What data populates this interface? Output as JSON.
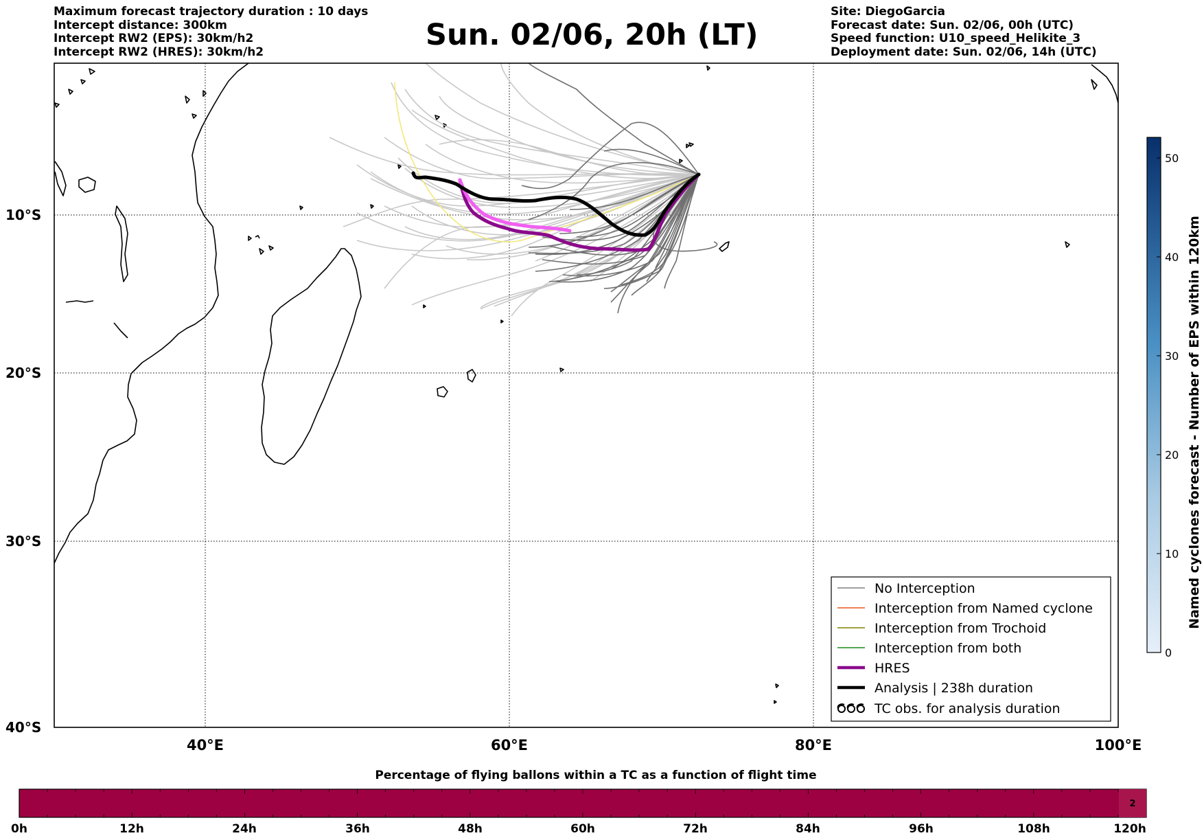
{
  "header_left": [
    "Maximum forecast trajectory duration : 10 days",
    "Intercept distance: 300km",
    "Intercept RW2 (EPS):  30km/h2",
    "Intercept RW2 (HRES): 30km/h2"
  ],
  "header_right": [
    "Site: DiegoGarcia",
    "Forecast date: Sun. 02/06, 00h (UTC)",
    "Speed function: U10_speed_Helikite_3",
    "Deployment date: Sun. 02/06, 14h (UTC)"
  ],
  "title": "Sun. 02/06, 20h (LT)",
  "map": {
    "lat_labels": [
      "10°S",
      "20°S",
      "30°S",
      "40°S"
    ],
    "lon_labels": [
      "40°E",
      "60°E",
      "80°E",
      "100°E"
    ]
  },
  "legend": {
    "items": [
      {
        "label": "No Interception",
        "color": "#7f7f7f",
        "style": "thin-line"
      },
      {
        "label": "Interception from Named cyclone",
        "color": "#e8571a",
        "style": "thin-line"
      },
      {
        "label": "Interception from Trochoid",
        "color": "#808000",
        "style": "thin-line"
      },
      {
        "label": "Interception from both",
        "color": "#1a8a1a",
        "style": "thin-line"
      },
      {
        "label": "HRES",
        "color": "#8b0a8b",
        "style": "thick-line"
      },
      {
        "label": "Analysis | 238h duration",
        "color": "#000000",
        "style": "thick-line"
      },
      {
        "label": "TC obs. for analysis duration",
        "color": "#000000",
        "style": "tc-symbol"
      }
    ]
  },
  "colorbar_right": {
    "label": "Named cyclones forecast - Number of EPS within 120km",
    "ticks": [
      "0",
      "10",
      "20",
      "30",
      "40",
      "50"
    ],
    "color_low": "#e6eff9",
    "color_high": "#08306b"
  },
  "bottom_bar": {
    "title": "Percentage of flying ballons within a TC as a function of flight time",
    "ticks": [
      "0h",
      "12h",
      "24h",
      "36h",
      "48h",
      "60h",
      "72h",
      "84h",
      "96h",
      "108h",
      "120h"
    ],
    "fill_color": "#9e0142",
    "end_cell_value": "2"
  }
}
